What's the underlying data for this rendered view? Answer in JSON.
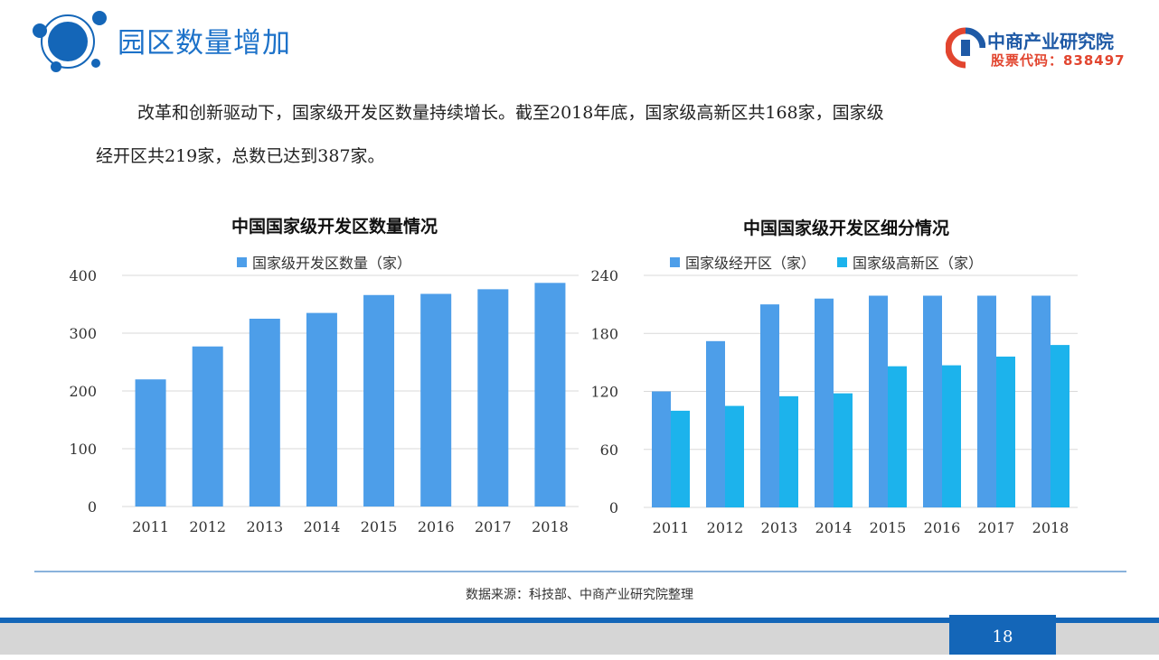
{
  "header": {
    "title": "园区数量增加",
    "logo_name": "中商产业研究院",
    "logo_code": "股票代码：838497"
  },
  "intro": {
    "line1": "改革和创新驱动下，国家级开发区数量持续增长。截至2018年底，国家级高新区共168家，国家级",
    "line2": "经开区共219家，总数已达到387家。"
  },
  "colors": {
    "accent": "#1d72c9",
    "series_primary": "#4d9ee9",
    "series_secondary": "#1cb3ec",
    "grid": "#d9d9d9"
  },
  "chart_data": [
    {
      "type": "bar",
      "title": "中国国家级开发区数量情况",
      "categories": [
        "2011",
        "2012",
        "2013",
        "2014",
        "2015",
        "2016",
        "2017",
        "2018"
      ],
      "series": [
        {
          "name": "国家级开发区数量（家）",
          "values": [
            220,
            277,
            325,
            335,
            366,
            368,
            376,
            387
          ]
        }
      ],
      "ylim": [
        0,
        400
      ],
      "yticks": [
        0,
        100,
        200,
        300,
        400
      ],
      "grid": true,
      "legend": "top-center"
    },
    {
      "type": "bar",
      "title": "中国国家级开发区细分情况",
      "categories": [
        "2011",
        "2012",
        "2013",
        "2014",
        "2015",
        "2016",
        "2017",
        "2018"
      ],
      "series": [
        {
          "name": "国家级经开区（家）",
          "values": [
            120,
            172,
            210,
            216,
            219,
            219,
            219,
            219
          ]
        },
        {
          "name": "国家级高新区（家）",
          "values": [
            100,
            105,
            115,
            118,
            146,
            147,
            156,
            168
          ]
        }
      ],
      "ylim": [
        0,
        240
      ],
      "yticks": [
        0,
        60,
        120,
        180,
        240
      ],
      "grid": true,
      "legend": "top-center"
    }
  ],
  "footer": {
    "source": "数据来源：科技部、中商产业研究院整理",
    "page_number": "18"
  }
}
